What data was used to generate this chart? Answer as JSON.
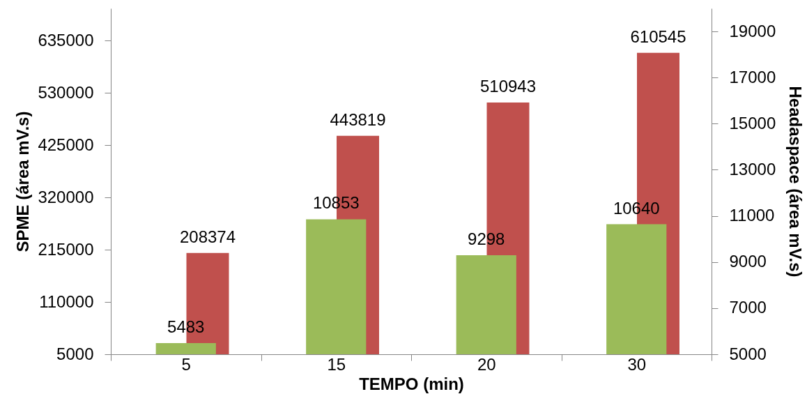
{
  "chart_data": {
    "type": "bar",
    "xlabel": "TEMPO (min)",
    "ylabel": "SPME (área mV.s)",
    "y2label": "Headaspace (área mV.s)",
    "categories": [
      "5",
      "15",
      "20",
      "30"
    ],
    "series": [
      {
        "color": "#c0504d",
        "values": [
          208374,
          443819,
          510943,
          610545
        ]
      },
      {
        "color": "#9bbb59",
        "axis": "y2",
        "values": [
          5483,
          10853,
          9298,
          10640
        ]
      }
    ],
    "ylim": [
      5000,
      700000
    ],
    "yticks": [
      5000,
      110000,
      215000,
      320000,
      425000,
      530000,
      635000
    ],
    "y2lim": [
      5000,
      20000
    ],
    "y2ticks": [
      5000,
      7000,
      9000,
      11000,
      13000,
      15000,
      17000,
      19000
    ],
    "data_labels": true,
    "grid": false
  }
}
